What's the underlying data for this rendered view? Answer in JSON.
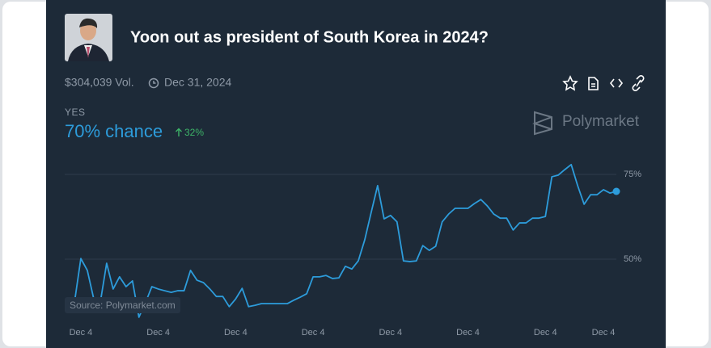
{
  "header": {
    "title": "Yoon out as president of South Korea in 2024?",
    "volume": "$304,039 Vol.",
    "date": "Dec 31, 2024"
  },
  "outcome": {
    "label": "YES",
    "chance": "70% chance",
    "change": "32%"
  },
  "brand": "Polymarket",
  "source": "Source: Polymarket.com",
  "chart_data": {
    "type": "line",
    "categories": [
      null,
      null,
      "Dec 4",
      null,
      null,
      null,
      null,
      null,
      null,
      null,
      null,
      null,
      null,
      null,
      "Dec 4",
      null,
      null,
      null,
      null,
      null,
      null,
      null,
      null,
      null,
      null,
      null,
      "Dec 4",
      null,
      null,
      null,
      null,
      null,
      null,
      null,
      null,
      null,
      null,
      null,
      "Dec 4",
      null,
      null,
      null,
      null,
      null,
      null,
      null,
      null,
      null,
      null,
      null,
      "Dec 4",
      null,
      null,
      null,
      null,
      null,
      null,
      null,
      null,
      null,
      null,
      null,
      "Dec 4",
      null,
      null,
      null,
      null,
      null,
      null,
      null,
      null,
      null,
      null,
      null,
      "Dec 4",
      null,
      null,
      null,
      null,
      null,
      null,
      null,
      null,
      "Dec 4",
      null,
      null
    ],
    "series": [
      {
        "name": "YES",
        "color": "#2d9cdb",
        "values": [
          38.3,
          37.1,
          50.2,
          46.7,
          38.3,
          37.1,
          48.8,
          41.2,
          44.8,
          41.9,
          43.6,
          32.9,
          37.1,
          41.9,
          41.2,
          40.7,
          40.2,
          40.7,
          40.7,
          46.7,
          43.8,
          43.1,
          41.2,
          39.0,
          39.0,
          36.0,
          38.3,
          41.4,
          36.0,
          36.4,
          36.9,
          36.9,
          36.9,
          36.9,
          36.9,
          37.9,
          38.8,
          39.8,
          44.8,
          44.8,
          45.2,
          44.3,
          44.5,
          47.9,
          47.1,
          49.5,
          55.7,
          63.8,
          71.7,
          61.9,
          62.9,
          61.0,
          49.5,
          49.3,
          49.5,
          54.0,
          52.6,
          53.8,
          61.0,
          63.3,
          65.0,
          65.0,
          65.0,
          66.4,
          67.6,
          65.7,
          63.3,
          62.1,
          62.1,
          58.6,
          60.7,
          60.7,
          62.1,
          62.1,
          62.6,
          74.3,
          74.8,
          76.4,
          77.9,
          71.7,
          66.2,
          69.0,
          69.0,
          70.5,
          69.5,
          70.0
        ]
      }
    ],
    "ylim": [
      30,
      80
    ],
    "yticks": [
      {
        "value": 50,
        "label": "50%"
      },
      {
        "value": 75,
        "label": "75%"
      }
    ],
    "grid": true
  }
}
